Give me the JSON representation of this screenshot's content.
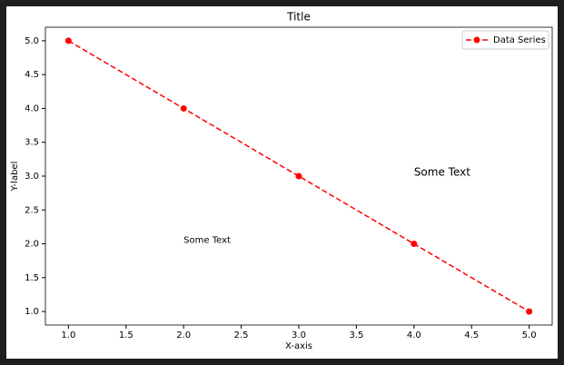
{
  "chart_data": {
    "type": "line",
    "title": "Title",
    "xlabel": "X-axis",
    "ylabel": "Y-label",
    "x": [
      1,
      2,
      3,
      4,
      5
    ],
    "series": [
      {
        "name": "Data Series",
        "color": "#ff0000",
        "linestyle": "dashed",
        "marker": "circle",
        "values": [
          5,
          4,
          3,
          2,
          1
        ]
      }
    ],
    "xlim": [
      0.8,
      5.2
    ],
    "xticks": [
      {
        "value": 1,
        "label": "1.0"
      },
      {
        "value": 1.5,
        "label": "1.5"
      },
      {
        "value": 2,
        "label": "2.0"
      },
      {
        "value": 2.5,
        "label": "2.5"
      },
      {
        "value": 3,
        "label": "3.0"
      },
      {
        "value": 3.5,
        "label": "3.5"
      },
      {
        "value": 4,
        "label": "4.0"
      },
      {
        "value": 4.5,
        "label": "4.5"
      },
      {
        "value": 5,
        "label": "5.0"
      }
    ],
    "ylim": [
      0.8,
      5.2
    ],
    "yticks": [
      {
        "value": 1,
        "label": "1.0"
      },
      {
        "value": 1.5,
        "label": "1.5"
      },
      {
        "value": 2,
        "label": "2.0"
      },
      {
        "value": 2.5,
        "label": "2.5"
      },
      {
        "value": 3,
        "label": "3.0"
      },
      {
        "value": 3.5,
        "label": "3.5"
      },
      {
        "value": 4,
        "label": "4.0"
      },
      {
        "value": 4.5,
        "label": "4.5"
      },
      {
        "value": 5,
        "label": "5.0"
      }
    ],
    "grid": false,
    "legend": "upper right",
    "annotations": [
      {
        "text": "Some Text",
        "x": 2,
        "y": 2,
        "fontsize": 10
      },
      {
        "text": "Some Text",
        "x": 4,
        "y": 3,
        "fontsize": 12
      }
    ]
  }
}
